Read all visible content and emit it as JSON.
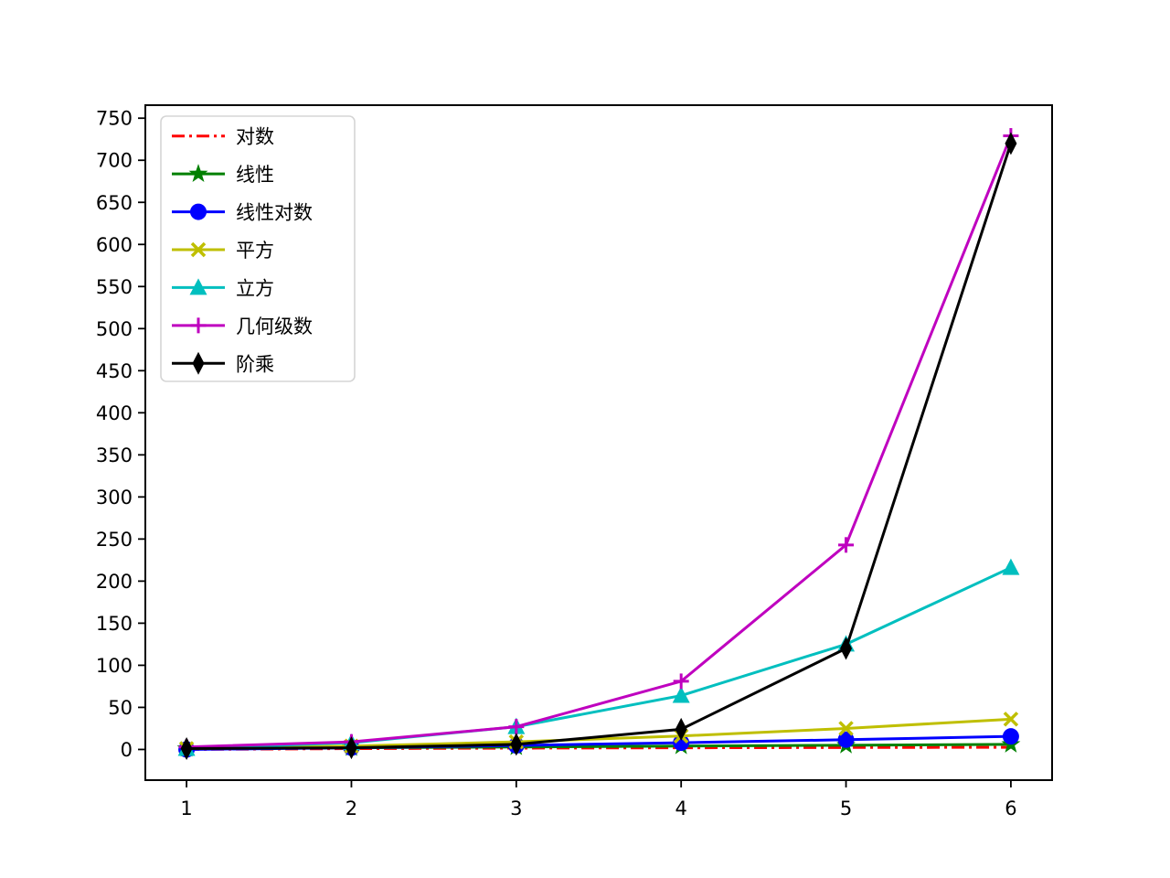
{
  "chart_data": {
    "type": "line",
    "title": "",
    "xlabel": "",
    "ylabel": "",
    "grid": false,
    "legend_position": "upper-left",
    "x": [
      1,
      2,
      3,
      4,
      5,
      6
    ],
    "xticks": [
      1,
      2,
      3,
      4,
      5,
      6
    ],
    "yticks": [
      0,
      50,
      100,
      150,
      200,
      250,
      300,
      350,
      400,
      450,
      500,
      550,
      600,
      650,
      700,
      750
    ],
    "xlim": [
      0.75,
      6.25
    ],
    "ylim": [
      -36.45,
      765.45
    ],
    "series": [
      {
        "name": "对数",
        "color": "#ff0000",
        "linestyle": "dashdot",
        "marker": "none",
        "values": [
          0,
          1,
          1.585,
          2,
          2.322,
          2.585
        ]
      },
      {
        "name": "线性",
        "color": "#008000",
        "linestyle": "solid",
        "marker": "star",
        "values": [
          1,
          2,
          3,
          4,
          5,
          6
        ]
      },
      {
        "name": "线性对数",
        "color": "#0000ff",
        "linestyle": "solid",
        "marker": "circle",
        "values": [
          0,
          2,
          4.755,
          8,
          11.61,
          15.51
        ]
      },
      {
        "name": "平方",
        "color": "#bfbf00",
        "linestyle": "solid",
        "marker": "x",
        "values": [
          1,
          4,
          9,
          16,
          25,
          36
        ]
      },
      {
        "name": "立方",
        "color": "#00bfbf",
        "linestyle": "solid",
        "marker": "triangle-up",
        "values": [
          1,
          8,
          27,
          64,
          125,
          216
        ]
      },
      {
        "name": "几何级数",
        "color": "#bf00bf",
        "linestyle": "solid",
        "marker": "plus",
        "values": [
          3,
          9,
          27,
          81,
          243,
          729
        ]
      },
      {
        "name": "阶乘",
        "color": "#000000",
        "linestyle": "solid",
        "marker": "diamond-thin",
        "values": [
          1,
          2,
          6,
          24,
          120,
          720
        ]
      }
    ],
    "colors": {
      "axis": "#000000",
      "legend_border": "#d5d5d5",
      "background": "#ffffff"
    }
  }
}
